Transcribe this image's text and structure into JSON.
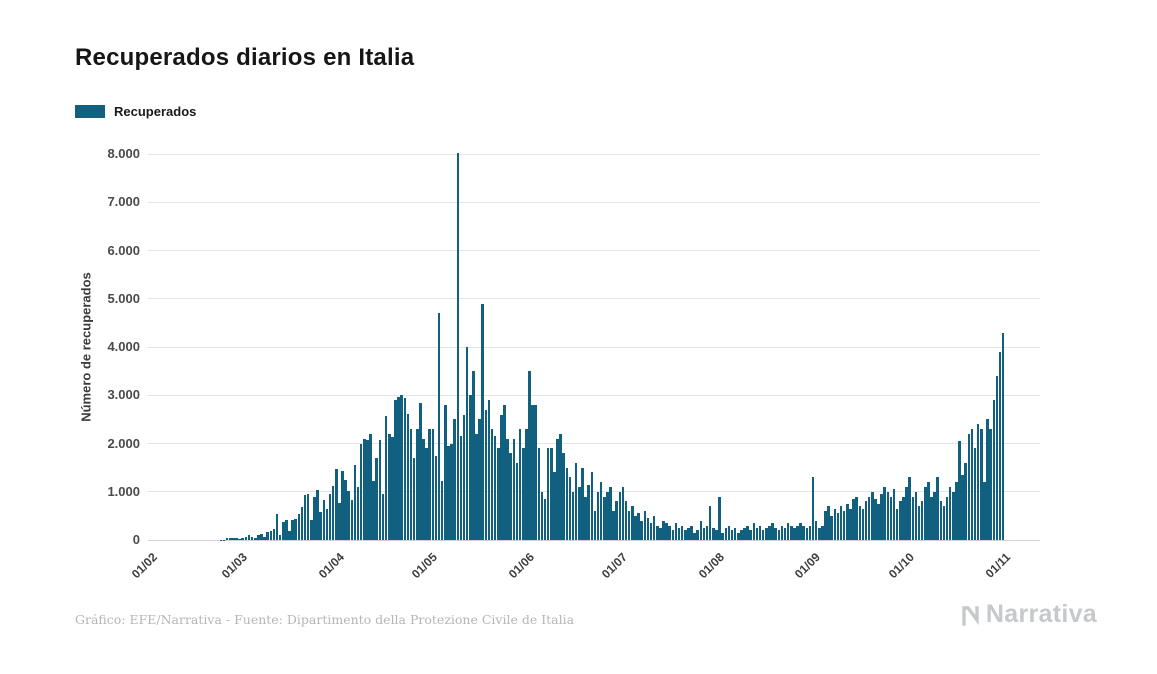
{
  "page": {
    "title": "Recuperados diarios en Italia",
    "footer": "Gráfico: EFE/Narrativa - Fuente: Dipartimento della Protezione Civile de Italia",
    "brand": "Narrativa"
  },
  "chart_data": {
    "type": "bar",
    "title": "Recuperados diarios en Italia",
    "legend_label": "Recuperados",
    "xlabel": "",
    "ylabel": "Número de recuperados",
    "ylim": [
      0,
      8000
    ],
    "grid": true,
    "legend_position": "top-left",
    "bar_color": "#11607F",
    "ytick_values": [
      0,
      1000,
      2000,
      3000,
      4000,
      5000,
      6000,
      7000,
      8000
    ],
    "ytick_labels": [
      "0",
      "1.000",
      "2.000",
      "3.000",
      "4.000",
      "5.000",
      "6.000",
      "7.000",
      "8.000"
    ],
    "xtick_labels": [
      "01/02",
      "01/03",
      "01/04",
      "01/05",
      "01/06",
      "01/07",
      "01/08",
      "01/09",
      "01/10",
      "01/11"
    ],
    "xtick_day_indices": [
      0,
      29,
      60,
      90,
      121,
      151,
      182,
      213,
      243,
      274
    ],
    "x_start_label": "01/02",
    "x_end_label": "01/11",
    "values": [
      0,
      0,
      0,
      0,
      0,
      0,
      0,
      0,
      0,
      0,
      0,
      0,
      0,
      0,
      0,
      0,
      0,
      0,
      0,
      0,
      0,
      0,
      1,
      2,
      3,
      40,
      45,
      50,
      35,
      30,
      50,
      60,
      110,
      70,
      40,
      100,
      130,
      60,
      170,
      180,
      220,
      530,
      110,
      370,
      410,
      190,
      420,
      440,
      530,
      690,
      940,
      950,
      410,
      890,
      1040,
      590,
      820,
      650,
      950,
      1110,
      1480,
      760,
      1430,
      1240,
      1010,
      820,
      1560,
      1100,
      1980,
      2100,
      2080,
      2200,
      1220,
      1700,
      2070,
      960,
      2560,
      2200,
      2130,
      2910,
      2970,
      3000,
      2940,
      2620,
      2310,
      1700,
      2310,
      2850,
      2100,
      1900,
      2300,
      2300,
      1740,
      4700,
      1225,
      2800,
      1940,
      2000,
      2500,
      8014,
      2155,
      2600,
      4010,
      3000,
      3500,
      2200,
      2500,
      4900,
      2700,
      2900,
      2300,
      2160,
      1900,
      2600,
      2800,
      2100,
      1800,
      2100,
      1600,
      2300,
      1900,
      2300,
      3500,
      2800,
      2800,
      1900,
      1000,
      850,
      1900,
      1900,
      1400,
      2100,
      2200,
      1800,
      1500,
      1300,
      1000,
      1600,
      1100,
      1500,
      890,
      1150,
      1400,
      600,
      1000,
      1200,
      900,
      1000,
      1100,
      600,
      800,
      1000,
      1100,
      800,
      600,
      700,
      500,
      550,
      400,
      600,
      450,
      350,
      500,
      300,
      250,
      400,
      350,
      300,
      200,
      350,
      250,
      300,
      200,
      250,
      300,
      150,
      200,
      400,
      250,
      300,
      700,
      250,
      200,
      900,
      150,
      250,
      300,
      200,
      250,
      150,
      200,
      250,
      300,
      200,
      350,
      250,
      300,
      200,
      250,
      300,
      350,
      250,
      200,
      300,
      250,
      350,
      300,
      250,
      300,
      350,
      300,
      250,
      300,
      1300,
      400,
      250,
      300,
      600,
      700,
      500,
      650,
      550,
      700,
      600,
      750,
      650,
      850,
      900,
      700,
      650,
      800,
      900,
      1000,
      850,
      750,
      950,
      1100,
      1000,
      900,
      1050,
      650,
      800,
      900,
      1100,
      1300,
      900,
      1000,
      700,
      800,
      1100,
      1200,
      900,
      1000,
      1300,
      800,
      700,
      900,
      1100,
      1000,
      1200,
      2050,
      1350,
      1600,
      2200,
      2300,
      1900,
      2400,
      2300,
      1200,
      2500,
      2300,
      2900,
      3400,
      3900,
      4300
    ]
  }
}
